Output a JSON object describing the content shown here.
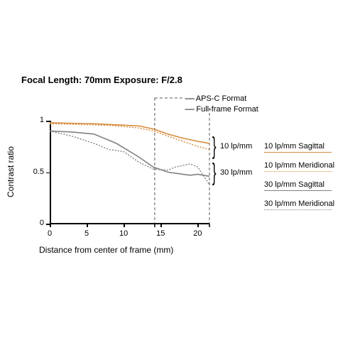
{
  "title_prefix": "Focal Length: ",
  "focal_length": "70mm",
  "title_mid": "   Exposure: ",
  "exposure": "F/2.8",
  "chart": {
    "type": "line",
    "xlim": [
      0,
      21.6
    ],
    "ylim": [
      0,
      1
    ],
    "xticks": [
      0,
      5,
      10,
      15,
      20
    ],
    "yticks": [
      0,
      0.5,
      1
    ],
    "yticklabels": [
      "0",
      "0.5",
      "1"
    ],
    "xticklabels": [
      "0",
      "5",
      "10",
      "15",
      "20"
    ],
    "xlabel": "Distance from center of frame (mm)",
    "ylabel": "Contrast ratio",
    "background_color": "#ffffff",
    "axis_color": "#000000",
    "ref_lines": {
      "apsc": 14.2,
      "fullframe": 21.6
    },
    "ref_color": "#555555",
    "series": [
      {
        "name": "10 lp/mm Sagittal",
        "color": "#d68a3a",
        "dash": "none",
        "width": 1.6,
        "data": [
          [
            0,
            0.98
          ],
          [
            3,
            0.975
          ],
          [
            6,
            0.97
          ],
          [
            9,
            0.96
          ],
          [
            12,
            0.95
          ],
          [
            14,
            0.92
          ],
          [
            16,
            0.87
          ],
          [
            18,
            0.83
          ],
          [
            20,
            0.8
          ],
          [
            21.6,
            0.78
          ]
        ]
      },
      {
        "name": "10 lp/mm Meridional",
        "color": "#d68a3a",
        "dash": "2,2",
        "width": 1.4,
        "data": [
          [
            0,
            0.97
          ],
          [
            3,
            0.965
          ],
          [
            6,
            0.96
          ],
          [
            9,
            0.95
          ],
          [
            12,
            0.93
          ],
          [
            14,
            0.9
          ],
          [
            16,
            0.85
          ],
          [
            18,
            0.8
          ],
          [
            20,
            0.75
          ],
          [
            21.6,
            0.72
          ]
        ]
      },
      {
        "name": "30 lp/mm Sagittal",
        "color": "#808080",
        "dash": "none",
        "width": 1.6,
        "data": [
          [
            0,
            0.9
          ],
          [
            3,
            0.89
          ],
          [
            6,
            0.87
          ],
          [
            9,
            0.78
          ],
          [
            12,
            0.65
          ],
          [
            14,
            0.55
          ],
          [
            16,
            0.5
          ],
          [
            18,
            0.48
          ],
          [
            19,
            0.47
          ],
          [
            20,
            0.48
          ],
          [
            21.6,
            0.46
          ]
        ]
      },
      {
        "name": "30 lp/mm Meridional",
        "color": "#808080",
        "dash": "2,2",
        "width": 1.4,
        "data": [
          [
            0,
            0.9
          ],
          [
            3,
            0.85
          ],
          [
            6,
            0.78
          ],
          [
            8,
            0.72
          ],
          [
            10,
            0.7
          ],
          [
            12,
            0.6
          ],
          [
            14,
            0.53
          ],
          [
            16,
            0.52
          ],
          [
            17,
            0.55
          ],
          [
            19,
            0.58
          ],
          [
            20,
            0.55
          ],
          [
            21.6,
            0.38
          ]
        ]
      }
    ]
  },
  "annotations": {
    "apsc": "APS-C Format",
    "fullframe": "Full-frame Format",
    "brace10": "10 lp/mm",
    "brace30": "30 lp/mm"
  },
  "legend": [
    {
      "label": "10 lp/mm Sagittal",
      "color": "#d68a3a",
      "dash": "solid"
    },
    {
      "label": "10 lp/mm Meridional",
      "color": "#d68a3a",
      "dash": "dotted"
    },
    {
      "label": "30 lp/mm Sagittal",
      "color": "#808080",
      "dash": "solid"
    },
    {
      "label": "30 lp/mm Meridional",
      "color": "#808080",
      "dash": "dotted"
    }
  ]
}
